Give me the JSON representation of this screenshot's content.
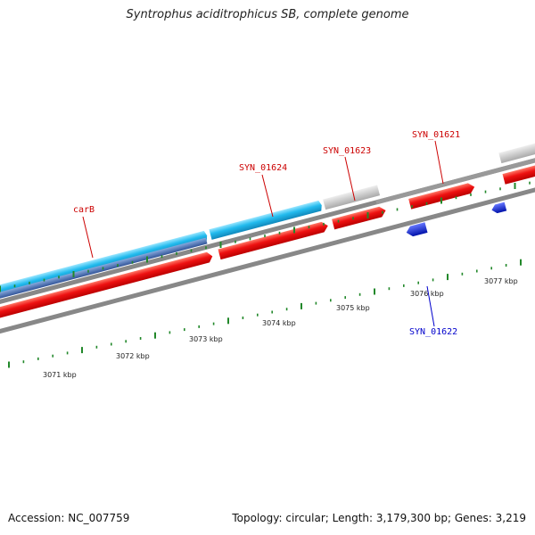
{
  "title": "Syntrophus aciditrophicus SB, complete genome",
  "footer": {
    "accession": "Accession: NC_007759",
    "stats": "Topology: circular; Length: 3,179,300 bp; Genes: 3,219"
  },
  "colors": {
    "gene_red": "#ee1111",
    "gene_cyan": "#22bbee",
    "gene_steel": "#4477bb",
    "gene_gray": "#c8c8c8",
    "gene_blue": "#1133dd",
    "backbone": "#888888",
    "tick": "#22882a",
    "label_red": "#cc0000",
    "label_blue": "#0000cc"
  },
  "ruler": {
    "ticks": [
      {
        "label": "3071 kbp"
      },
      {
        "label": "3072 kbp"
      },
      {
        "label": "3073 kbp"
      },
      {
        "label": "3074 kbp"
      },
      {
        "label": "3075 kbp"
      },
      {
        "label": "3076 kbp"
      },
      {
        "label": "3077 kbp"
      }
    ]
  },
  "genes": [
    {
      "name": "carB",
      "strand": "+",
      "color": "gene_red"
    },
    {
      "name": "SYN_01624",
      "strand": "+",
      "color": "gene_red"
    },
    {
      "name": "SYN_01623",
      "strand": "+",
      "color": "gene_red"
    },
    {
      "name": "SYN_01621",
      "strand": "+",
      "color": "gene_red"
    },
    {
      "name": "SYN_01622",
      "strand": "-",
      "color": "gene_blue"
    }
  ]
}
